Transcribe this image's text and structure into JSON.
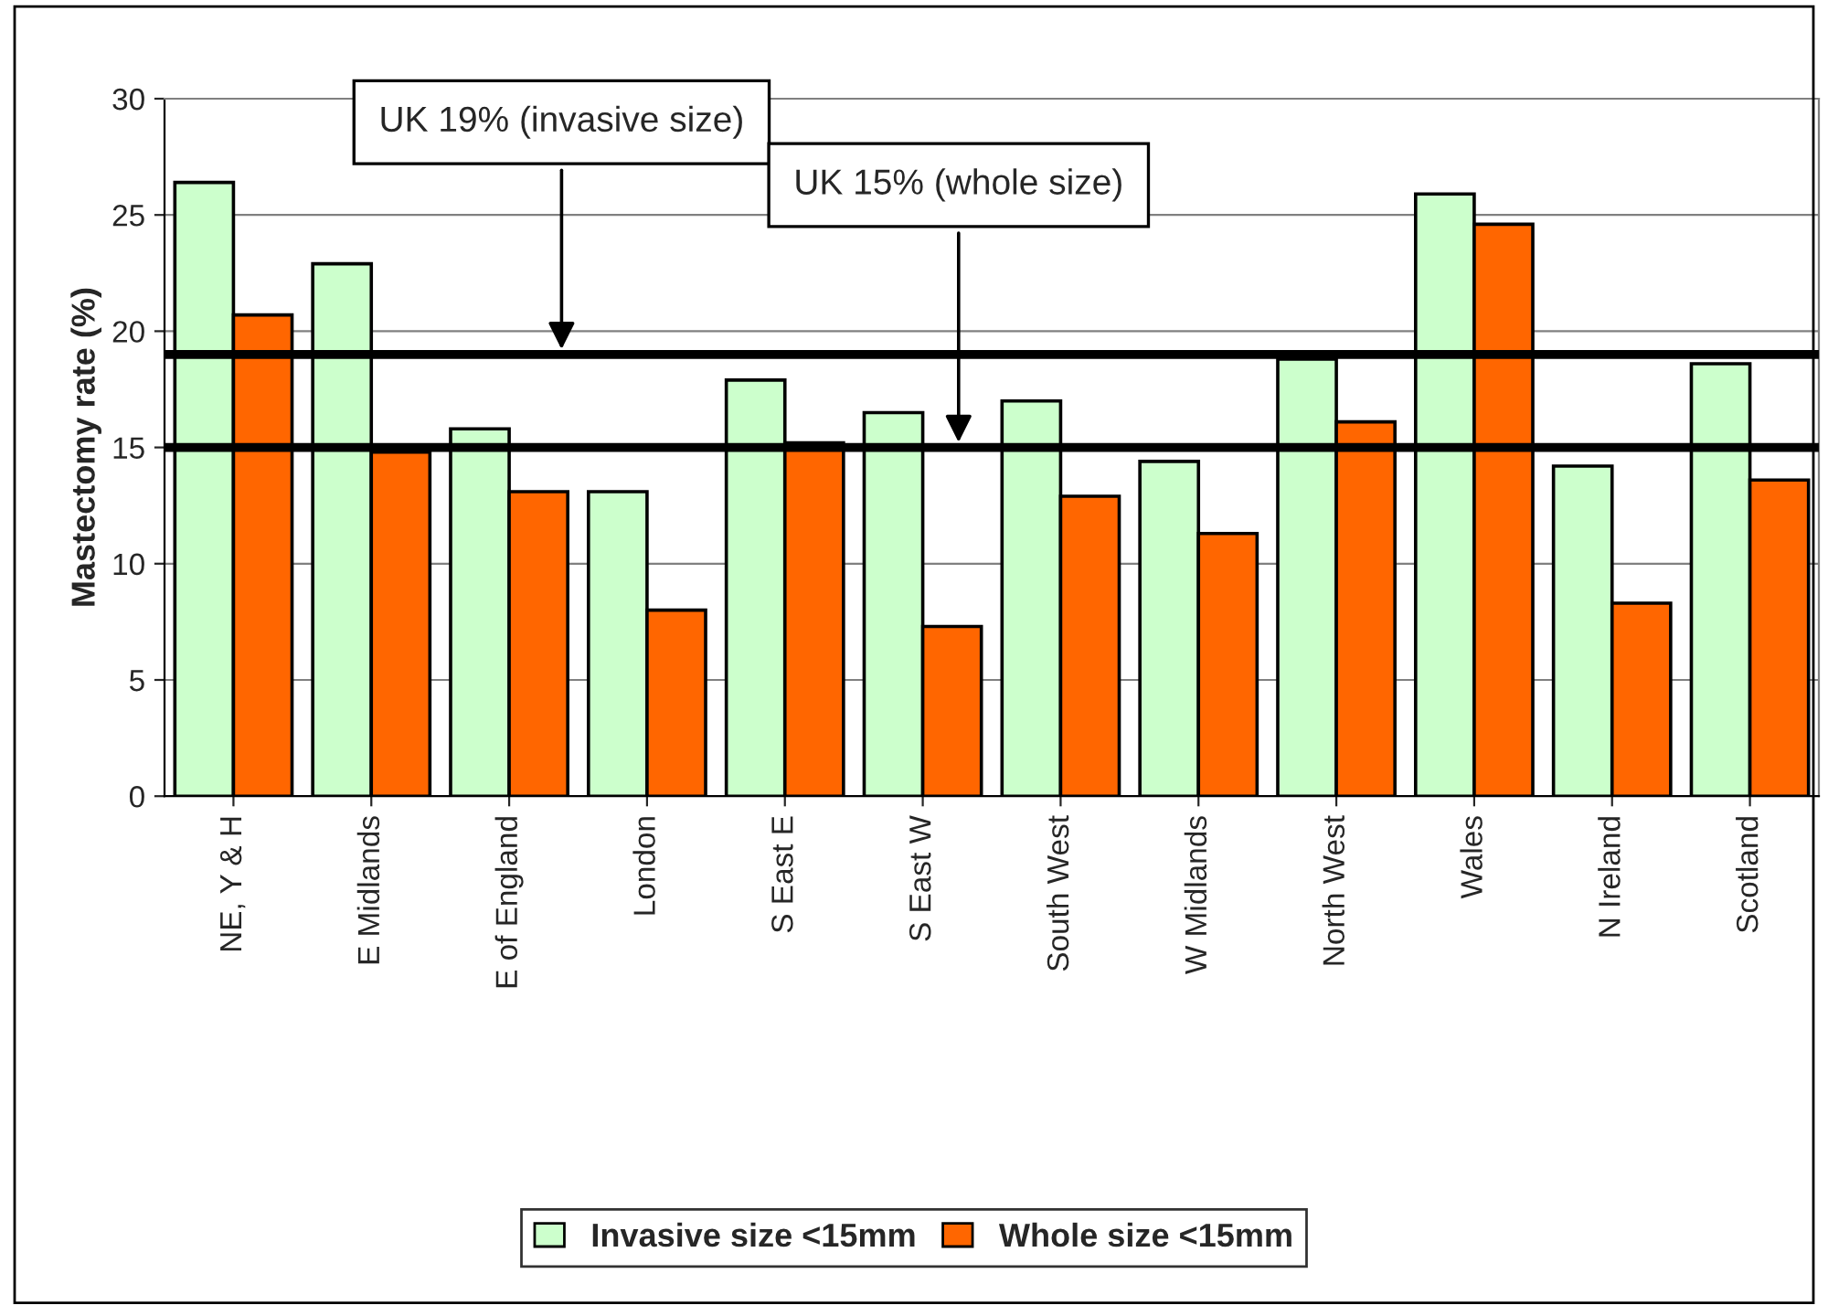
{
  "chart_data": {
    "type": "bar",
    "ylabel": "Mastectomy rate (%)",
    "categories": [
      "NE, Y & H",
      "E Midlands",
      "E of England",
      "London",
      "S East E",
      "S East W",
      "South West",
      "W Midlands",
      "North West",
      "Wales",
      "N Ireland",
      "Scotland"
    ],
    "series": [
      {
        "name": "Invasive size <15mm",
        "color": "#ccffcc",
        "values": [
          26.4,
          22.9,
          15.8,
          13.1,
          17.9,
          16.5,
          17.0,
          14.4,
          18.8,
          25.9,
          14.2,
          18.6
        ]
      },
      {
        "name": "Whole size <15mm",
        "color": "#ff6600",
        "values": [
          20.7,
          14.8,
          13.1,
          8.0,
          15.2,
          7.3,
          12.9,
          11.3,
          16.1,
          24.6,
          8.3,
          13.6
        ]
      }
    ],
    "ylim": [
      0,
      30
    ],
    "yticks": [
      0,
      5,
      10,
      15,
      20,
      25,
      30
    ],
    "ref_lines": [
      {
        "axis": "y",
        "value": 19,
        "label": "UK 19% (invasive size)",
        "color": "#000000"
      },
      {
        "axis": "y",
        "value": 15,
        "label": "UK 15% (whole size)",
        "color": "#000000"
      }
    ],
    "grid": "y",
    "legend": "bottom"
  }
}
